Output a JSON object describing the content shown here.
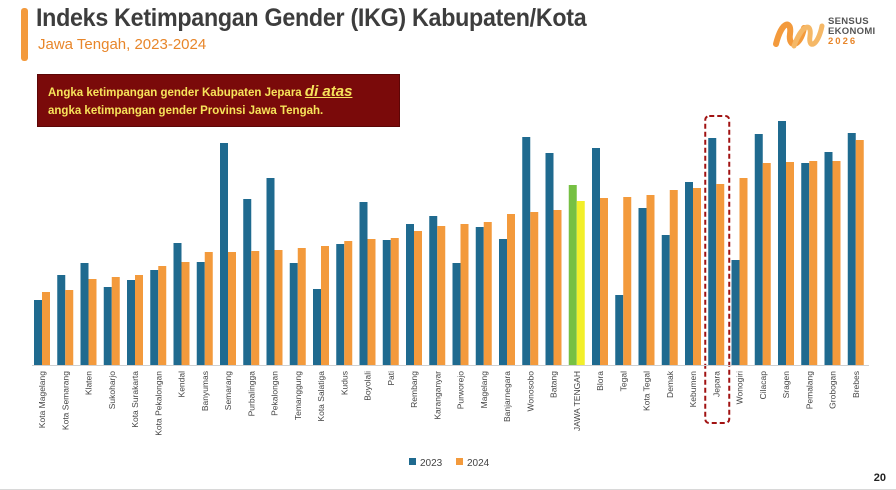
{
  "slide": {
    "title": "Indeks Ketimpangan Gender (IKG) Kabupaten/Kota",
    "subtitle": "Jawa Tengah, 2023-2024",
    "page_number": "20",
    "logo": {
      "line1": "SENSUS",
      "line2": "EKONOMI",
      "year": "2026"
    },
    "callout": {
      "line1_before": "Angka ketimpangan gender Kabupaten Jepara ",
      "line1_emphasis": "di atas",
      "line2": "angka ketimpangan gender Provinsi Jawa Tengah."
    }
  },
  "colors": {
    "series_2023": "#1f6a8f",
    "series_2024": "#f39a3c",
    "jateng_2023": "#76c043",
    "jateng_2024": "#f2ef2a",
    "callout_bg": "#7a0a0a",
    "callout_text": "#f7e35a",
    "highlight_box": "#a11212",
    "accent": "#f39a3c"
  },
  "chart_data": {
    "type": "bar",
    "categories": [
      "Kota Magelang",
      "Kota Semarang",
      "Klaten",
      "Sukoharjo",
      "Kota Surakarta",
      "Kota Pekalongan",
      "Kendal",
      "Banyumas",
      "Semarang",
      "Purbalingga",
      "Pekalongan",
      "Temanggung",
      "Kota Salatiga",
      "Kudus",
      "Boyolali",
      "Pati",
      "Rembang",
      "Karanganyar",
      "Purworejo",
      "Magelang",
      "Banjarnegara",
      "Wonosobo",
      "Batang",
      "JAWA TENGAH",
      "Blora",
      "Tegal",
      "Kota Tegal",
      "Demak",
      "Kebumen",
      "Jepara",
      "Wonogiri",
      "Cilacap",
      "Sragen",
      "Pemalang",
      "Grobogan",
      "Brebes"
    ],
    "series": [
      {
        "name": "2023",
        "values": [
          65,
          90,
          102,
          78,
          85,
          95,
          122,
          103,
          222,
          166,
          187,
          102,
          76,
          121,
          163,
          125,
          141,
          149,
          102,
          138,
          126,
          228,
          212,
          180,
          217,
          70,
          157,
          130,
          183,
          227,
          105,
          231,
          244,
          202,
          213,
          232
        ]
      },
      {
        "name": "2024",
        "values": [
          73,
          75,
          86,
          88,
          90,
          99,
          103,
          113,
          113,
          114,
          115,
          117,
          119,
          124,
          126,
          127,
          134,
          139,
          141,
          143,
          151,
          153,
          155,
          164,
          167,
          168,
          170,
          175,
          177,
          181,
          187,
          202,
          203,
          204,
          204,
          225
        ]
      }
    ],
    "highlight_category": "JAWA TENGAH",
    "boxed_category": "Jepara",
    "legend_position": "bottom",
    "grid": false,
    "y_axis_shown": false
  }
}
